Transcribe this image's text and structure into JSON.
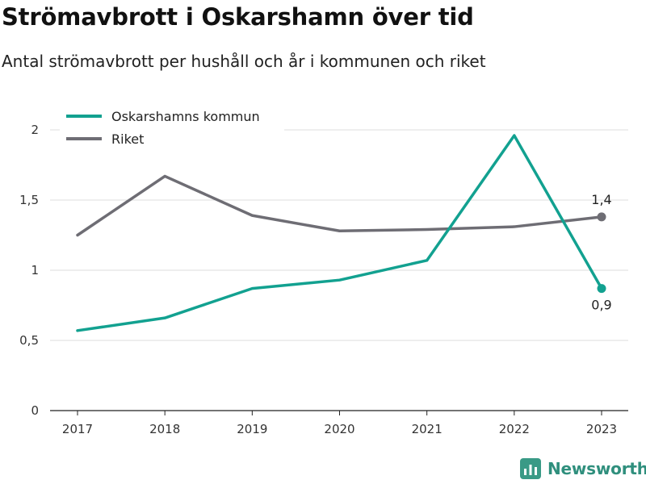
{
  "title": "Strömavbrott i Oskarshamn över tid",
  "subtitle": "Antal strömavbrott per hushåll och år i kommunen och riket",
  "brand": {
    "name": "Newsworthy",
    "icon": "newsworthy-logo-icon",
    "color": "#3a9a86"
  },
  "chart_data": {
    "type": "line",
    "x": [
      "2017",
      "2018",
      "2019",
      "2020",
      "2021",
      "2022",
      "2023"
    ],
    "ylim": [
      0,
      2
    ],
    "yticks": [
      0,
      0.5,
      1,
      1.5,
      2
    ],
    "ytick_labels": [
      "0",
      "0,5",
      "1",
      "1,5",
      "2"
    ],
    "grid": true,
    "legend_position": "top-left",
    "series": [
      {
        "name": "Oskarshamns kommun",
        "color": "#12a190",
        "values": [
          0.57,
          0.66,
          0.87,
          0.93,
          1.07,
          1.96,
          0.87
        ],
        "end_label": "0,9"
      },
      {
        "name": "Riket",
        "color": "#6e6d74",
        "values": [
          1.25,
          1.67,
          1.39,
          1.28,
          1.29,
          1.31,
          1.38
        ],
        "end_label": "1,4"
      }
    ]
  }
}
